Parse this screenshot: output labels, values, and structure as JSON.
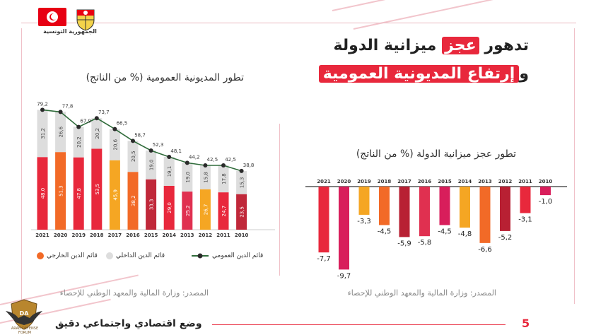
{
  "header": {
    "republic_name": "الجمهورية التونسية",
    "title_line1_pre": "تدهور ",
    "title_line1_hl": "عجز",
    "title_line1_post": " ميزانية الدولة",
    "title_line2_pre": "و",
    "title_line2_hl": "إرتفاع المديونية العمومية"
  },
  "left_panel": {
    "subtitle": "تطور المديونية العمومية  (% من الناتج)",
    "legend": {
      "external": "قائم الدين الخارجي",
      "internal": "قائم الدين الداخلي",
      "total": "قائم الدين العمومي"
    },
    "source": "المصدر: وزارة المالية والمعهد الوطني للإحصاء"
  },
  "right_panel": {
    "subtitle": "تطور عجز ميزانية الدولة  (% من الناتج)",
    "source": "المصدر: وزارة المالية والمعهد الوطني للإحصاء"
  },
  "footer": {
    "text": "وضع اقتصادي واجتماعي دقيق",
    "page_number": "5",
    "logo_text": "ARAB DEFENSE FORUM"
  },
  "colors": {
    "accent": "#e8283c",
    "internal": "#dddddd",
    "line": "#2f6b3a"
  },
  "chart_data": [
    {
      "type": "bar",
      "stacked": true,
      "categories": [
        "2021",
        "2020",
        "2019",
        "2018",
        "2017",
        "2016",
        "2015",
        "2014",
        "2013",
        "2012",
        "2011",
        "2010"
      ],
      "series": [
        {
          "name": "قائم الدين الخارجي",
          "values": [
            48.0,
            51.3,
            47.8,
            53.5,
            45.9,
            38.2,
            33.3,
            29.0,
            25.2,
            26.7,
            24.7,
            23.5
          ],
          "labels": [
            "48,0",
            "51,3",
            "47,8",
            "53,5",
            "45,9",
            "38,2",
            "33,3",
            "29,0",
            "25,2",
            "26,7",
            "24,7",
            "23,5"
          ],
          "colors": [
            "#e8283c",
            "#f26a27",
            "#e8283c",
            "#e8283c",
            "#f5a623",
            "#f26a27",
            "#c0283a",
            "#e8283c",
            "#e03050",
            "#f5a623",
            "#e8283c",
            "#c0283a"
          ]
        },
        {
          "name": "قائم الدين الداخلي",
          "values": [
            31.2,
            26.6,
            20.2,
            20.2,
            20.6,
            20.5,
            19.0,
            19.1,
            19.0,
            15.8,
            17.8,
            15.3
          ],
          "labels": [
            "31,2",
            "26,6",
            "20,2",
            "20,2",
            "20,6",
            "20,5",
            "19,0",
            "19,1",
            "19,0",
            "15,8",
            "17,8",
            "15,3"
          ]
        },
        {
          "name": "قائم الدين العمومي",
          "type": "line",
          "values": [
            79.2,
            77.8,
            67.9,
            73.7,
            66.5,
            58.7,
            52.3,
            48.1,
            44.2,
            42.5,
            42.5,
            38.8
          ],
          "labels": [
            "79,2",
            "77,8",
            "67,9",
            "73,7",
            "66,5",
            "58,7",
            "52,3",
            "48,1",
            "44,2",
            "42,5",
            "42,5",
            "38,8"
          ]
        }
      ],
      "ylim": [
        0,
        85
      ]
    },
    {
      "type": "bar",
      "categories": [
        "2021",
        "2020",
        "2019",
        "2018",
        "2017",
        "2016",
        "2015",
        "2014",
        "2013",
        "2012",
        "2011",
        "2010"
      ],
      "values": [
        -7.7,
        -9.7,
        -3.3,
        -4.5,
        -5.9,
        -5.8,
        -4.5,
        -4.8,
        -6.6,
        -5.2,
        -3.1,
        -1.0
      ],
      "labels": [
        "-7,7",
        "-9,7",
        "-3,3",
        "-4,5",
        "-5,9",
        "-5,8",
        "-4,5",
        "-4,8",
        "-6,6",
        "-5,2",
        "-3,1",
        "-1,0"
      ],
      "colors": [
        "#e8283c",
        "#d81e5b",
        "#f5a623",
        "#f26a27",
        "#b82033",
        "#e03050",
        "#d81e5b",
        "#f5a623",
        "#f26a27",
        "#b82033",
        "#e8283c",
        "#d81e5b"
      ],
      "ylim": [
        -10,
        0
      ]
    }
  ]
}
